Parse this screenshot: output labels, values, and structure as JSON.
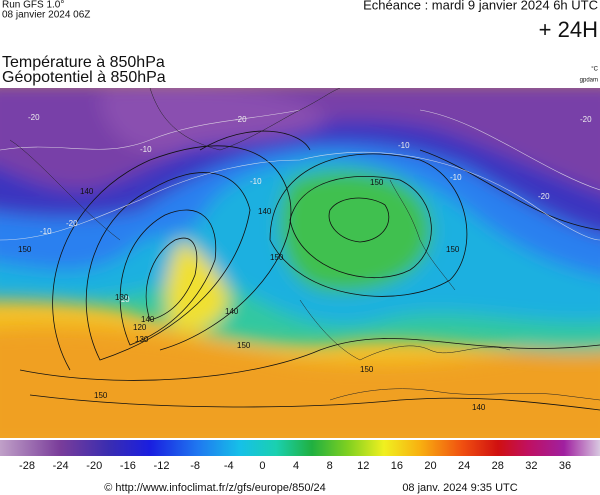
{
  "header": {
    "run": "Run GFS 1.0°",
    "run_date": "08 janvier 2024 06Z",
    "echeance": "Echéance : mardi 9 janvier 2024 6h UTC",
    "lead": "+ 24H"
  },
  "titles": {
    "line1": "Température à 850hPa",
    "line2": "Géopotentiel à 850hPa",
    "unit1": "°C",
    "unit2": "gpdam"
  },
  "map": {
    "temperature_labels": [
      "-20",
      "-20",
      "-10",
      "-10",
      "-20",
      "-10",
      "-20",
      "-10",
      "-20",
      "-10",
      "-10"
    ],
    "geopotential_labels": [
      "140",
      "150",
      "130",
      "120",
      "140",
      "150",
      "140",
      "150",
      "150",
      "150",
      "140",
      "130",
      "150",
      "150",
      "140"
    ]
  },
  "colorbar": {
    "ticks": [
      "-28",
      "-24",
      "-20",
      "-16",
      "-12",
      "-8",
      "-4",
      "0",
      "4",
      "8",
      "12",
      "16",
      "20",
      "24",
      "28",
      "32",
      "36"
    ]
  },
  "footer": {
    "url": "© http://www.infoclimat.fr/z/gfs/europe/850/24",
    "generated": "08 janv. 2024  9:35 UTC"
  }
}
